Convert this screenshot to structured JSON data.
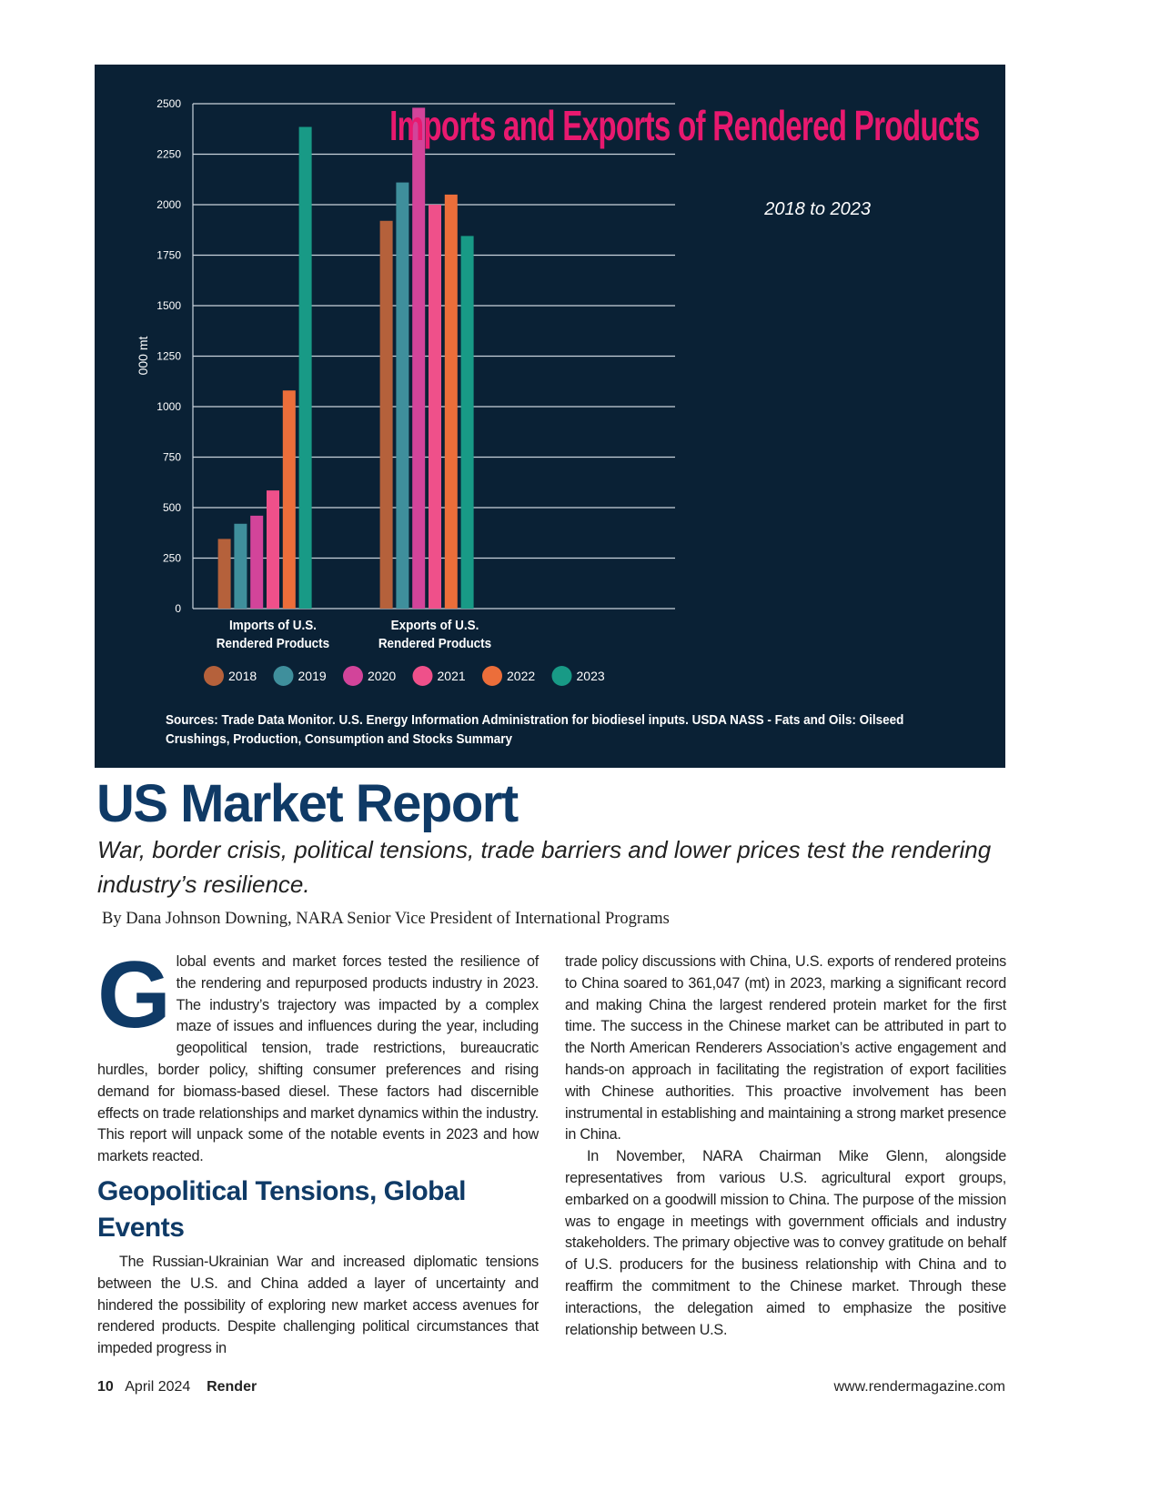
{
  "chart_data": {
    "type": "bar",
    "title": "Imports and Exports of Rendered Products",
    "subtitle": "2018 to 2023",
    "ylabel": "000 mt",
    "xlabel": "",
    "ylim": [
      0,
      2500
    ],
    "yticks": [
      "0",
      "250",
      "500",
      "750",
      "1000",
      "1250",
      "1500",
      "1750",
      "2000",
      "2250",
      "2500"
    ],
    "categories": [
      [
        "Imports of U.S.",
        "Rendered Products"
      ],
      [
        "Exports of U.S.",
        "Rendered Products"
      ]
    ],
    "series": [
      {
        "name": "2018",
        "color": "#b5613b",
        "values": [
          345,
          1920
        ]
      },
      {
        "name": "2019",
        "color": "#3f8f9c",
        "values": [
          420,
          2110
        ]
      },
      {
        "name": "2020",
        "color": "#d2449a",
        "values": [
          460,
          2480
        ]
      },
      {
        "name": "2021",
        "color": "#ef508a",
        "values": [
          585,
          2000
        ]
      },
      {
        "name": "2022",
        "color": "#ec6e3a",
        "values": [
          1080,
          2050
        ]
      },
      {
        "name": "2023",
        "color": "#189a86",
        "values": [
          2385,
          1845
        ]
      }
    ],
    "grid": true,
    "legend": "bottom",
    "sources": "Sources:  Trade Data Monitor. U.S. Energy Information Administration for biodiesel inputs. USDA NASS - Fats and Oils: Oilseed Crushings, Production, Consumption and Stocks Summary"
  },
  "article": {
    "headline": "US Market Report",
    "deck": "War, border crisis, political tensions, trade barriers and lower prices test the rendering industry’s resilience.",
    "byline": "By Dana Johnson Downing, NARA Senior Vice President of International Programs",
    "drop_cap": "G",
    "p1": "lobal events and market forces tested the resilience of the rendering and repurposed products industry in 2023. The industry’s trajectory was impacted by a complex maze of issues and influences during the year, including geopolitical tension, trade restrictions, bureaucratic hurdles, border policy, shifting consumer preferences and rising demand for biomass-based diesel. These factors had discernible effects on trade relationships and market dynamics within the industry. This report will unpack some of the notable events in 2023 and how markets reacted.",
    "subhead": "Geopolitical Tensions, Global Events",
    "p2": "The Russian-Ukrainian War and increased diplomatic tensions between the U.S. and China added a layer of uncertainty and hindered the possibility of exploring new market access avenues for rendered products. Despite challenging political circumstances that impeded progress in",
    "p3": "trade policy discussions with China, U.S. exports of rendered proteins to China soared to 361,047 (mt) in 2023, marking a significant record and making China the largest rendered protein market for the first time. The success in the Chinese market can be attributed in part to the North American Renderers Association’s active engagement and hands-on approach in facilitating the registration of export facilities with Chinese authorities. This proactive involvement has been instrumental in establishing and maintaining a strong market presence in China.",
    "p4": "In November, NARA Chairman Mike Glenn, alongside representatives from various U.S. agricultural export groups, embarked on a goodwill mission to China. The purpose of the mission was to engage in meetings with government officials and industry stakeholders. The primary objective was to convey gratitude on behalf of U.S. producers for the business relationship with China and to reaffirm the commitment to the Chinese market. Through these interactions, the delegation aimed to emphasize the positive relationship between U.S."
  },
  "footer": {
    "page": "10",
    "date": "April 2024",
    "magazine": "Render",
    "url": "www.rendermagazine.com"
  }
}
